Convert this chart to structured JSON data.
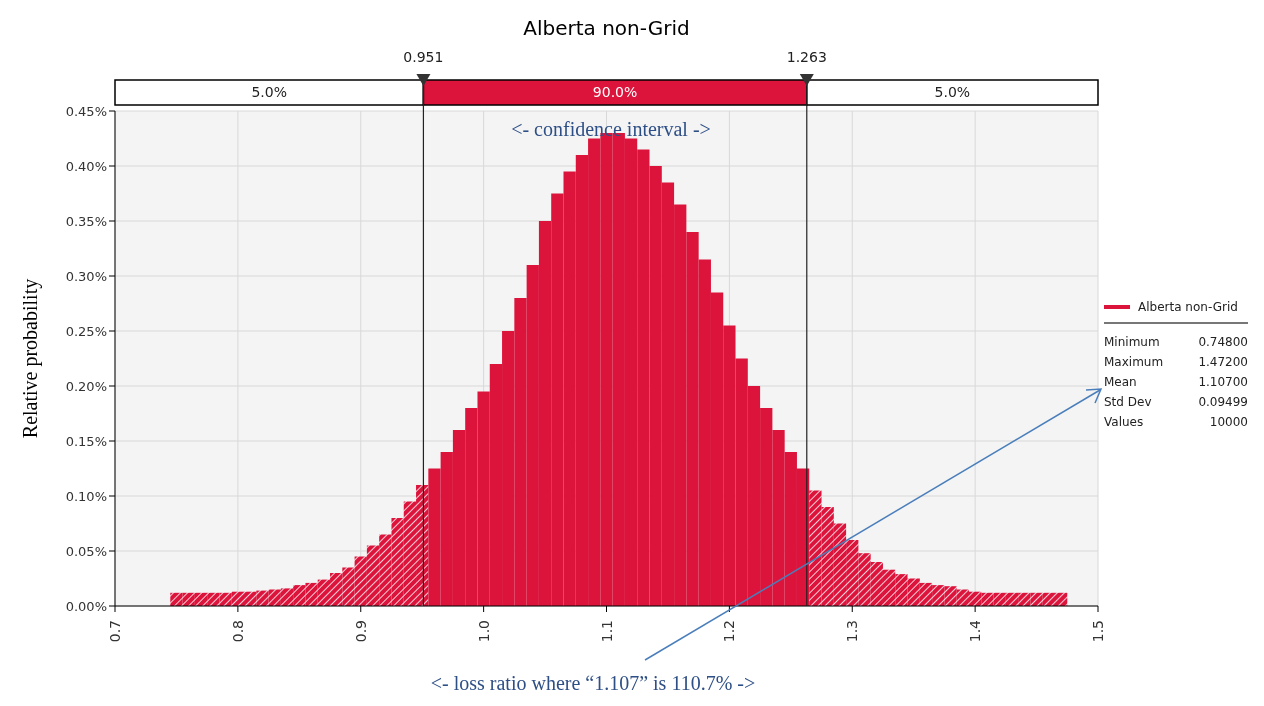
{
  "chart_data": {
    "type": "histogram",
    "title": "Alberta non-Grid",
    "ylabel": "Relative probability",
    "bins": [
      0.745,
      0.755,
      0.765,
      0.775,
      0.785,
      0.795,
      0.805,
      0.815,
      0.825,
      0.835,
      0.845,
      0.855,
      0.865,
      0.875,
      0.885,
      0.895,
      0.905,
      0.915,
      0.925,
      0.935,
      0.945,
      0.955,
      0.965,
      0.975,
      0.985,
      0.995,
      1.005,
      1.015,
      1.025,
      1.035,
      1.045,
      1.055,
      1.065,
      1.075,
      1.085,
      1.095,
      1.105,
      1.115,
      1.125,
      1.135,
      1.145,
      1.155,
      1.165,
      1.175,
      1.185,
      1.195,
      1.205,
      1.215,
      1.225,
      1.235,
      1.245,
      1.255,
      1.265,
      1.275,
      1.285,
      1.295,
      1.305,
      1.315,
      1.325,
      1.335,
      1.345,
      1.355,
      1.365,
      1.375,
      1.385,
      1.395,
      1.405,
      1.415,
      1.425,
      1.435,
      1.445,
      1.455,
      1.465,
      1.475
    ],
    "series": [
      {
        "name": "Alberta non-Grid",
        "color": "#dc143c",
        "values": [
          0.012,
          0.012,
          0.012,
          0.012,
          0.012,
          0.013,
          0.013,
          0.014,
          0.015,
          0.016,
          0.019,
          0.021,
          0.024,
          0.03,
          0.035,
          0.045,
          0.055,
          0.065,
          0.08,
          0.095,
          0.11,
          0.125,
          0.14,
          0.16,
          0.18,
          0.195,
          0.22,
          0.25,
          0.28,
          0.31,
          0.35,
          0.375,
          0.395,
          0.41,
          0.425,
          0.43,
          0.43,
          0.425,
          0.415,
          0.4,
          0.385,
          0.365,
          0.34,
          0.315,
          0.285,
          0.255,
          0.225,
          0.2,
          0.18,
          0.16,
          0.14,
          0.125,
          0.105,
          0.09,
          0.075,
          0.06,
          0.048,
          0.04,
          0.033,
          0.029,
          0.025,
          0.021,
          0.019,
          0.018,
          0.015,
          0.013,
          0.012,
          0.012,
          0.012,
          0.012,
          0.012,
          0.012,
          0.012
        ]
      }
    ],
    "xlim": [
      0.7,
      1.5
    ],
    "xticks": [
      0.7,
      0.8,
      0.9,
      {
        "value": 1,
        "label": "1.0"
      },
      1.1,
      1.2,
      1.3,
      1.4,
      1.5
    ],
    "ylim": [
      0,
      0.45
    ],
    "yticks": [
      {
        "value": 0,
        "label": "0.00%"
      },
      {
        "value": 0.05,
        "label": "0.05%"
      },
      {
        "value": 0.1,
        "label": "0.10%"
      },
      {
        "value": 0.15,
        "label": "0.15%"
      },
      {
        "value": 0.2,
        "label": "0.20%"
      },
      {
        "value": 0.25,
        "label": "0.25%"
      },
      {
        "value": 0.3,
        "label": "0.30%"
      },
      {
        "value": 0.35,
        "label": "0.35%"
      },
      {
        "value": 0.4,
        "label": "0.40%"
      },
      {
        "value": 0.45,
        "label": "0.45%"
      }
    ],
    "ref_lines": [
      {
        "axis": "x",
        "value": 0.951,
        "label": "0.951"
      },
      {
        "axis": "x",
        "value": 1.263,
        "label": "1.263"
      }
    ],
    "annotations": [
      "<- confidence interval ->",
      "<- loss ratio where “1.107” is 110.7%   ->",
      "5.0%",
      "90.0%",
      "5.0%",
      "Minimum",
      "0.74800",
      "Maximum",
      "1.47200",
      "Mean",
      "1.10700",
      "Std Dev",
      "0.09499",
      "Values",
      "10000"
    ],
    "grid": true,
    "legend": "right"
  }
}
